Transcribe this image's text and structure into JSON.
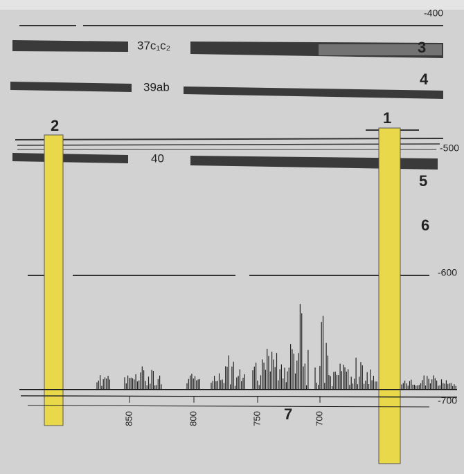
{
  "scale_labels": [
    "-400",
    "-500",
    "-600",
    "-700"
  ],
  "bands": [
    {
      "label": "37c₁c₂",
      "number": "3"
    },
    {
      "label": "39ab",
      "number": "4"
    },
    {
      "label": "40",
      "number": "5"
    }
  ],
  "extra_number": "6",
  "columns": [
    "1",
    "2"
  ],
  "axis_labels": [
    "850",
    "800",
    "750",
    "700"
  ],
  "axis_number": "7"
}
